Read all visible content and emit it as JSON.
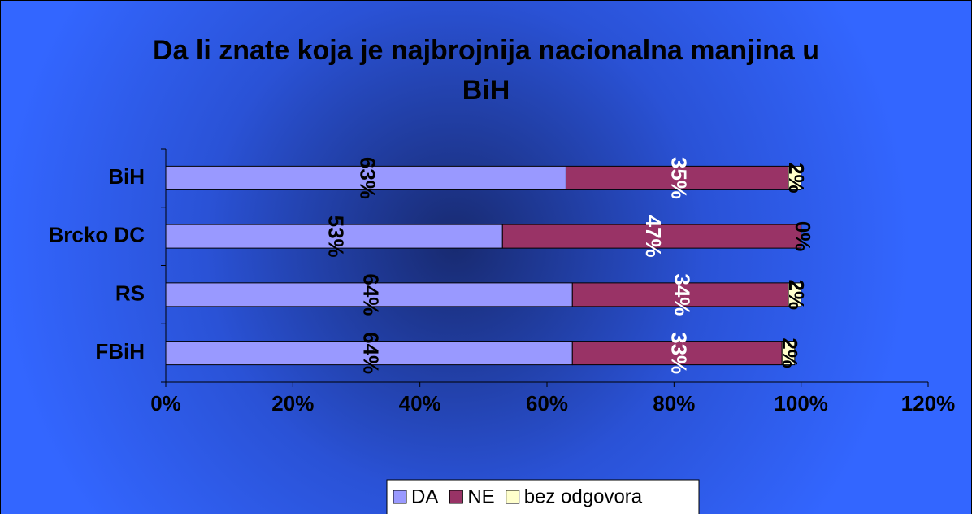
{
  "chart_data": {
    "type": "stacked-horizontal-bar",
    "title": "Da li znate koja je najbrojnija nacionalna manjina u",
    "title_line2": "BiH",
    "categories": [
      "BiH",
      "Brcko DC",
      "RS",
      "FBiH"
    ],
    "series": [
      {
        "name": "DA",
        "color": "#9999ff",
        "values": [
          63,
          53,
          64,
          64
        ],
        "value_labels": [
          "63%",
          "53%",
          "64%",
          "64%"
        ],
        "label_color": "#000000"
      },
      {
        "name": "NE",
        "color": "#993366",
        "values": [
          35,
          47,
          34,
          33
        ],
        "value_labels": [
          "35%",
          "47%",
          "34%",
          "33%"
        ],
        "label_color": "#ffffff"
      },
      {
        "name": "bez odgovora",
        "color": "#ffffcc",
        "values": [
          2,
          0,
          2,
          2
        ],
        "value_labels": [
          "2%",
          "0%",
          "2%",
          "2%"
        ],
        "label_color": "#000000"
      }
    ],
    "xlim": [
      0,
      120
    ],
    "xticks": [
      {
        "value": 0,
        "label": "0%"
      },
      {
        "value": 20,
        "label": "20%"
      },
      {
        "value": 40,
        "label": "40%"
      },
      {
        "value": 60,
        "label": "60%"
      },
      {
        "value": 80,
        "label": "80%"
      },
      {
        "value": 100,
        "label": "100%"
      },
      {
        "value": 120,
        "label": "120%"
      }
    ],
    "legend": "bottom"
  }
}
